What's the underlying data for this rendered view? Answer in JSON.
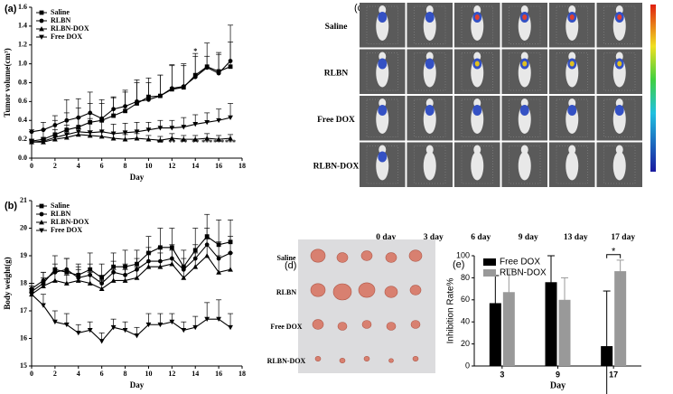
{
  "chart_data": [
    {
      "panel": "(a)",
      "type": "line",
      "xlabel": "Day",
      "ylabel": "Tumor volume(cm³)",
      "xlim": [
        0,
        18
      ],
      "ylim": [
        0,
        1.6
      ],
      "xticks": [
        0,
        2,
        4,
        6,
        8,
        10,
        12,
        14,
        16,
        18
      ],
      "yticks": [
        {
          "value": 0,
          "label": "0.0"
        },
        {
          "value": 0.2,
          "label": "0.2"
        },
        {
          "value": 0.4,
          "label": "0.4"
        },
        {
          "value": 0.6,
          "label": "0.6"
        },
        {
          "value": 0.8,
          "label": "0.8"
        },
        {
          "value": 1.0,
          "label": "1.0"
        },
        {
          "value": 1.2,
          "label": "1.2"
        },
        {
          "value": 1.4,
          "label": "1.4"
        },
        {
          "value": 1.6,
          "label": "1.6"
        }
      ],
      "x": [
        0,
        1,
        2,
        3,
        4,
        5,
        6,
        7,
        8,
        9,
        10,
        11,
        12,
        13,
        14,
        15,
        16,
        17
      ],
      "series": [
        {
          "name": "Saline",
          "marker": "square",
          "color": "#000000",
          "values": [
            0.18,
            0.2,
            0.25,
            0.3,
            0.33,
            0.38,
            0.4,
            0.45,
            0.5,
            0.58,
            0.65,
            0.66,
            0.73,
            0.75,
            0.88,
            0.97,
            0.92,
            0.97
          ],
          "errors": [
            0.1,
            0.1,
            0.15,
            0.18,
            0.2,
            0.2,
            0.18,
            0.2,
            0.22,
            0.25,
            0.2,
            0.22,
            0.25,
            0.25,
            0.2,
            0.25,
            0.2,
            0.44
          ]
        },
        {
          "name": "RLBN",
          "marker": "circle",
          "color": "#000000",
          "values": [
            0.28,
            0.3,
            0.35,
            0.4,
            0.43,
            0.48,
            0.42,
            0.52,
            0.55,
            0.6,
            0.62,
            0.66,
            0.74,
            0.76,
            0.86,
            0.96,
            0.9,
            1.03
          ],
          "errors": [
            0.02,
            0.08,
            0.1,
            0.22,
            0.2,
            0.22,
            0.2,
            0.12,
            0.15,
            0.2,
            0.18,
            0.22,
            0.25,
            0.22,
            0.25,
            0.12,
            0.2,
            0.2
          ]
        },
        {
          "name": "RLBN-DOX",
          "marker": "triangle-up",
          "color": "#000000",
          "values": [
            0.17,
            0.17,
            0.2,
            0.22,
            0.25,
            0.24,
            0.23,
            0.21,
            0.2,
            0.21,
            0.2,
            0.19,
            0.21,
            0.2,
            0.2,
            0.21,
            0.2,
            0.21
          ],
          "errors": [
            0.03,
            0.03,
            0.04,
            0.05,
            0.06,
            0.05,
            0.05,
            0.05,
            0.05,
            0.05,
            0.04,
            0.04,
            0.05,
            0.04,
            0.04,
            0.05,
            0.04,
            0.04
          ]
        },
        {
          "name": "Free DOX",
          "marker": "triangle-down",
          "color": "#000000",
          "values": [
            0.17,
            0.18,
            0.22,
            0.25,
            0.28,
            0.27,
            0.28,
            0.26,
            0.27,
            0.28,
            0.3,
            0.32,
            0.32,
            0.33,
            0.36,
            0.38,
            0.4,
            0.43
          ],
          "errors": [
            0.03,
            0.04,
            0.08,
            0.1,
            0.15,
            0.15,
            0.12,
            0.1,
            0.1,
            0.1,
            0.08,
            0.08,
            0.08,
            0.1,
            0.1,
            0.1,
            0.12,
            0.15
          ]
        }
      ],
      "annotations": [
        {
          "text": "*",
          "x": 14,
          "y": 1.13
        },
        {
          "text": "**",
          "x": 11,
          "y": 0.16
        },
        {
          "text": "**",
          "x": 12,
          "y": 0.16
        },
        {
          "text": "**",
          "x": 13,
          "y": 0.16
        },
        {
          "text": "**",
          "x": 14,
          "y": 0.16
        },
        {
          "text": "***",
          "x": 15,
          "y": 0.16
        },
        {
          "text": "***",
          "x": 16,
          "y": 0.16
        },
        {
          "text": "***",
          "x": 17,
          "y": 0.16
        }
      ]
    },
    {
      "panel": "(b)",
      "type": "line",
      "xlabel": "Day",
      "ylabel": "Body weight(g)",
      "xlim": [
        0,
        18
      ],
      "ylim": [
        15,
        21
      ],
      "xticks": [
        0,
        2,
        4,
        6,
        8,
        10,
        12,
        14,
        16,
        18
      ],
      "yticks": [
        15,
        16,
        17,
        18,
        19,
        20,
        21
      ],
      "x": [
        0,
        1,
        2,
        3,
        4,
        5,
        6,
        7,
        8,
        9,
        10,
        11,
        12,
        13,
        14,
        15,
        16,
        17
      ],
      "series": [
        {
          "name": "Saline",
          "marker": "square",
          "color": "#000000",
          "values": [
            17.7,
            18.0,
            18.5,
            18.4,
            18.3,
            18.5,
            18.2,
            18.6,
            18.6,
            18.7,
            19.1,
            19.3,
            19.3,
            18.6,
            19.2,
            19.7,
            19.4,
            19.5
          ],
          "errors": [
            0.3,
            0.4,
            0.5,
            0.5,
            0.4,
            0.6,
            0.5,
            0.5,
            0.6,
            0.5,
            0.6,
            0.7,
            0.7,
            0.6,
            0.8,
            0.8,
            0.9,
            0.8
          ]
        },
        {
          "name": "RLBN",
          "marker": "circle",
          "color": "#000000",
          "values": [
            17.8,
            18.1,
            18.4,
            18.5,
            18.2,
            18.3,
            18.0,
            18.4,
            18.3,
            18.5,
            18.8,
            18.8,
            18.9,
            18.5,
            18.9,
            19.4,
            18.9,
            19.1
          ],
          "errors": [
            0.2,
            0.3,
            0.3,
            0.4,
            0.4,
            0.4,
            0.3,
            0.4,
            0.4,
            0.4,
            0.5,
            0.5,
            0.5,
            0.4,
            0.5,
            0.6,
            0.6,
            0.6
          ]
        },
        {
          "name": "RLBN-DOX",
          "marker": "triangle-up",
          "color": "#000000",
          "values": [
            17.6,
            17.9,
            18.1,
            18.0,
            18.1,
            18.0,
            17.8,
            18.1,
            18.1,
            18.2,
            18.6,
            18.6,
            18.7,
            18.2,
            18.6,
            19.0,
            18.4,
            18.5
          ],
          "errors": [
            0.2,
            0.3,
            0.3,
            0.3,
            0.4,
            0.4,
            0.3,
            0.4,
            0.4,
            0.4,
            0.5,
            0.5,
            0.5,
            0.4,
            0.5,
            0.6,
            0.6,
            0.6
          ]
        },
        {
          "name": "Free DOX",
          "marker": "triangle-down",
          "color": "#000000",
          "values": [
            17.6,
            17.2,
            16.6,
            16.5,
            16.2,
            16.3,
            15.9,
            16.4,
            16.3,
            16.1,
            16.5,
            16.5,
            16.6,
            16.3,
            16.4,
            16.7,
            16.7,
            16.4
          ],
          "errors": [
            0.3,
            0.4,
            0.4,
            0.4,
            0.3,
            0.3,
            0.3,
            0.3,
            0.3,
            0.3,
            0.4,
            0.4,
            0.3,
            0.3,
            0.4,
            0.6,
            0.7,
            0.5
          ]
        }
      ]
    },
    {
      "panel": "(e)",
      "type": "bar",
      "xlabel": "Day",
      "ylabel": "Inhibition Rate%",
      "categories": [
        "3",
        "9",
        "17"
      ],
      "ylim": [
        0,
        100
      ],
      "yticks": [
        0,
        20,
        40,
        60,
        80,
        100
      ],
      "series": [
        {
          "name": "Free DOX",
          "color": "#000000",
          "values": [
            57,
            76,
            18
          ],
          "errors": [
            25,
            24,
            50
          ]
        },
        {
          "name": "RLBN-DOX",
          "color": "#999999",
          "values": [
            67,
            60,
            86
          ],
          "errors": [
            21,
            20,
            10
          ]
        }
      ],
      "annotations": [
        {
          "text": "*",
          "category": "17",
          "y": 101
        }
      ]
    }
  ],
  "imaging": {
    "panel": "(c)",
    "rows": [
      "Saline",
      "RLBN",
      "Free DOX",
      "RLBN-DOX"
    ],
    "columns": [
      "0  day",
      "3  day",
      "6  day",
      "9  day",
      "13  day",
      "17  day"
    ]
  },
  "photo": {
    "panel": "(d)",
    "rows": [
      "Saline",
      "RLBN",
      "Free DOX",
      "RLBN-DOX"
    ]
  }
}
